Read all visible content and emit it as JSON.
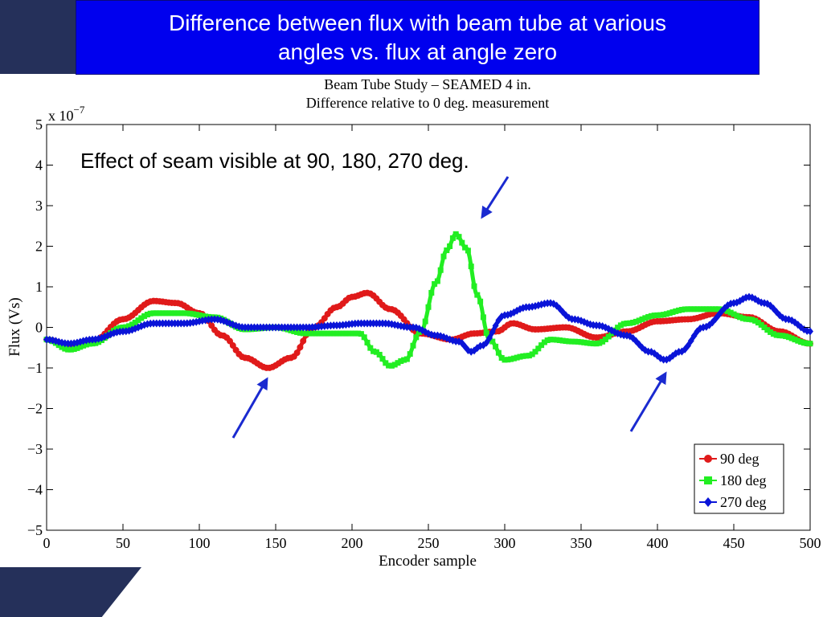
{
  "slide": {
    "title_line1": "Difference between flux with beam tube at various",
    "title_line2": "angles vs. flux at angle zero"
  },
  "colors": {
    "title_bg": "#0000ee",
    "corner": "#25305a",
    "red": "#e01a1a",
    "green": "#22ee22",
    "blue": "#0a14d8",
    "arrow": "#1a2ad0"
  },
  "chart_data": {
    "type": "line",
    "title_line1": "Beam Tube Study – SEAMED 4 in.",
    "title_line2": "Difference relative to 0 deg. measurement",
    "xlabel": "Encoder sample",
    "ylabel": "Flux (Vs)",
    "y_exponent_label": "x 10",
    "y_exponent_power": "−7",
    "xlim": [
      0,
      500
    ],
    "ylim": [
      -5,
      5
    ],
    "xticks": [
      0,
      50,
      100,
      150,
      200,
      250,
      300,
      350,
      400,
      450,
      500
    ],
    "yticks": [
      5,
      4,
      3,
      2,
      1,
      0,
      -1,
      -2,
      -3,
      -4,
      -5
    ],
    "ytick_labels": [
      "5",
      "4",
      "3",
      "2",
      "1",
      "0",
      "−1",
      "−2",
      "−3",
      "−4",
      "−5"
    ],
    "annotation": "Effect of seam visible at 90, 180, 270 deg.",
    "legend_position": "bottom-right",
    "series": [
      {
        "name": "90 deg",
        "color": "#e01a1a",
        "marker": "circle",
        "x": [
          0,
          15,
          30,
          50,
          70,
          85,
          100,
          115,
          130,
          145,
          160,
          175,
          190,
          200,
          210,
          225,
          245,
          265,
          280,
          295,
          305,
          320,
          340,
          360,
          380,
          400,
          420,
          440,
          460,
          480,
          500
        ],
        "y": [
          -0.3,
          -0.45,
          -0.35,
          0.2,
          0.65,
          0.6,
          0.35,
          -0.2,
          -0.75,
          -1.0,
          -0.75,
          0.0,
          0.5,
          0.75,
          0.85,
          0.45,
          -0.15,
          -0.3,
          -0.15,
          -0.1,
          0.1,
          -0.05,
          0.0,
          -0.25,
          -0.1,
          0.15,
          0.2,
          0.35,
          0.25,
          -0.1,
          -0.4
        ]
      },
      {
        "name": "180 deg",
        "color": "#22ee22",
        "marker": "square",
        "x": [
          0,
          15,
          30,
          50,
          70,
          90,
          110,
          130,
          150,
          170,
          190,
          205,
          215,
          225,
          235,
          245,
          255,
          262,
          268,
          275,
          282,
          290,
          300,
          315,
          330,
          345,
          360,
          380,
          400,
          420,
          440,
          460,
          480,
          500
        ],
        "y": [
          -0.3,
          -0.55,
          -0.4,
          0.0,
          0.35,
          0.35,
          0.25,
          -0.05,
          0.0,
          -0.15,
          -0.15,
          -0.15,
          -0.6,
          -0.95,
          -0.8,
          -0.1,
          1.1,
          1.9,
          2.3,
          1.95,
          0.8,
          -0.3,
          -0.8,
          -0.7,
          -0.3,
          -0.35,
          -0.4,
          0.1,
          0.3,
          0.45,
          0.45,
          0.2,
          -0.2,
          -0.4
        ]
      },
      {
        "name": "270 deg",
        "color": "#0a14d8",
        "marker": "diamond",
        "x": [
          0,
          15,
          30,
          50,
          70,
          90,
          110,
          130,
          150,
          170,
          190,
          205,
          220,
          240,
          255,
          270,
          278,
          285,
          300,
          315,
          330,
          345,
          360,
          380,
          395,
          405,
          415,
          430,
          450,
          460,
          470,
          485,
          500
        ],
        "y": [
          -0.3,
          -0.4,
          -0.3,
          -0.1,
          0.1,
          0.1,
          0.2,
          0.0,
          0.0,
          0.0,
          0.05,
          0.1,
          0.1,
          0.0,
          -0.2,
          -0.35,
          -0.6,
          -0.45,
          0.3,
          0.5,
          0.6,
          0.2,
          0.05,
          -0.2,
          -0.6,
          -0.8,
          -0.6,
          0.0,
          0.6,
          0.75,
          0.6,
          0.2,
          -0.1
        ]
      }
    ]
  }
}
